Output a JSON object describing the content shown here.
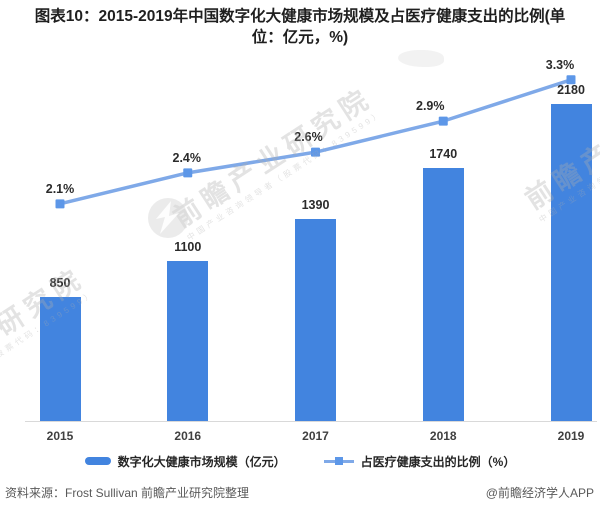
{
  "title": {
    "lines": [
      "图表10：2015-2019年中国数字化大健康市场规模及占医疗健康支出的比例(单",
      "位：亿元，%)"
    ]
  },
  "chart_data": {
    "type": "bar+line combo",
    "categories": [
      "2015",
      "2016",
      "2017",
      "2018",
      "2019"
    ],
    "series": [
      {
        "name": "数字化大健康市场规模（亿元）",
        "type": "bar",
        "values": [
          850,
          1100,
          1390,
          1740,
          2180
        ],
        "labels": [
          "850",
          "1100",
          "1390",
          "1740",
          "2180"
        ],
        "color": "#4284DF"
      },
      {
        "name": "占医疗健康支出的比例（%）",
        "type": "line",
        "values": [
          2.1,
          2.4,
          2.6,
          2.9,
          3.3
        ],
        "labels": [
          "2.1%",
          "2.4%",
          "2.6%",
          "2.9%",
          "3.3%"
        ],
        "color": "#7FA9E8",
        "marker_color": "#5D97E8",
        "marker_shape": "square"
      }
    ],
    "axes": {
      "x_labels_visible": true,
      "y_axis_visible": false,
      "gridlines": false,
      "primary_unit": "亿元",
      "secondary_unit": "%",
      "primary_min": 0,
      "secondary_min": 0,
      "baseline_color": "#D9D9D9"
    },
    "legend_position": "bottom",
    "layout": {
      "pct_label_dx": [
        0,
        -1,
        -7,
        -13,
        -11
      ]
    }
  },
  "footer": {
    "source": "资料来源：Frost Sullivan 前瞻产业研究院整理",
    "brand": "@前瞻经济学人APP"
  },
  "watermark": {
    "text": "前瞻产业研究院",
    "subtext": "中国产业咨询领导者（股票代码：839599）",
    "logo": "qianzhan-logo"
  }
}
